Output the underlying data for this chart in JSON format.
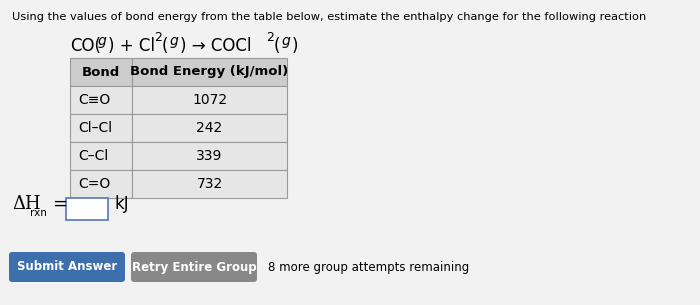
{
  "header_text": "Using the values of bond energy from the table below, estimate the enthalpy change for the following reaction",
  "table_header": [
    "Bond",
    "Bond Energy (kJ/mol)"
  ],
  "table_rows": [
    [
      "C≡O",
      "1072"
    ],
    [
      "Cl–Cl",
      "242"
    ],
    [
      "C–Cl",
      "339"
    ],
    [
      "C=O",
      "732"
    ]
  ],
  "submit_btn_text": "Submit Answer",
  "submit_btn_color": "#3d6fad",
  "retry_btn_text": "Retry Entire Group",
  "retry_btn_color": "#888888",
  "remaining_text": "8 more group attempts remaining",
  "bg_color": "#f2f2f2",
  "table_header_bg": "#cccccc",
  "table_row_bg": "#e6e6e6",
  "table_border_color": "#999999",
  "input_border_color": "#5577bb"
}
